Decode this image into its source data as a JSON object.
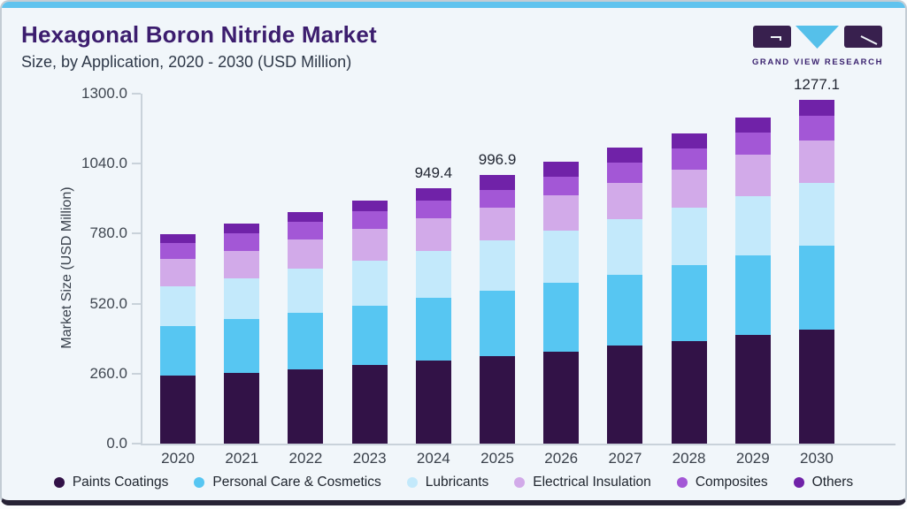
{
  "header": {
    "title": "Hexagonal Boron Nitride Market",
    "subtitle": "Size, by Application, 2020 - 2030 (USD Million)"
  },
  "logo": {
    "text": "GRAND VIEW RESEARCH",
    "icon": "gvr-logo-blocks",
    "purple": "#38204e",
    "cyan": "#55c0ea"
  },
  "colors": {
    "card_background": "#f1f6fa",
    "top_accent": "#60c3ee",
    "title_text": "#3c1d6e",
    "axis_line": "#c9d2da",
    "bottom_edge": "#272336"
  },
  "chart_data": {
    "type": "bar",
    "stacked": true,
    "title": "Hexagonal Boron Nitride Market Size, by Application, 2020 - 2030 (USD Million)",
    "xlabel": "",
    "ylabel": "Market Size (USD Million)",
    "ylim": [
      0,
      1300
    ],
    "yticks": [
      0,
      260,
      520,
      780,
      1040,
      1300
    ],
    "ytick_labels": [
      "0.0",
      "260.0",
      "520.0",
      "780.0",
      "1040.0",
      "1300.0"
    ],
    "grid": false,
    "legend_position": "bottom",
    "categories": [
      "2020",
      "2021",
      "2022",
      "2023",
      "2024",
      "2025",
      "2026",
      "2027",
      "2028",
      "2029",
      "2030"
    ],
    "series": [
      {
        "name": "Paints Coatings",
        "color": "#321247",
        "values": [
          253.0,
          264.0,
          277.0,
          293.0,
          307.0,
          324.0,
          340.9,
          363.0,
          382.0,
          402.6,
          425.0
        ]
      },
      {
        "name": "Personal Care & Cosmetics",
        "color": "#57c6f2",
        "values": [
          184.0,
          199.5,
          210.0,
          219.0,
          233.5,
          245.0,
          256.0,
          263.6,
          280.0,
          297.0,
          312.0
        ]
      },
      {
        "name": "Lubricants",
        "color": "#c3e9fb",
        "values": [
          148.0,
          152.0,
          163.0,
          167.0,
          176.5,
          187.5,
          196.0,
          209.0,
          213.0,
          221.0,
          232.5
        ]
      },
      {
        "name": "Electrical Insulation",
        "color": "#d2aae9",
        "values": [
          100.0,
          101.5,
          108.5,
          118.0,
          120.0,
          120.0,
          129.0,
          133.0,
          143.0,
          152.0,
          157.0
        ]
      },
      {
        "name": "Composites",
        "color": "#a357d6",
        "values": [
          60.0,
          64.0,
          65.0,
          66.0,
          65.5,
          66.0,
          69.0,
          74.0,
          77.0,
          82.0,
          90.0
        ]
      },
      {
        "name": "Others",
        "color": "#7022a8",
        "values": [
          33.6,
          37.0,
          36.9,
          39.6,
          46.9,
          54.4,
          55.0,
          56.0,
          57.5,
          58.5,
          60.6
        ]
      }
    ],
    "totals": [
      778.6,
      818.0,
      860.4,
      902.6,
      949.4,
      996.9,
      1045.9,
      1098.6,
      1152.5,
      1213.1,
      1277.1
    ],
    "visible_total_labels": {
      "2024": "949.4",
      "2025": "996.9",
      "2030": "1277.1"
    }
  }
}
